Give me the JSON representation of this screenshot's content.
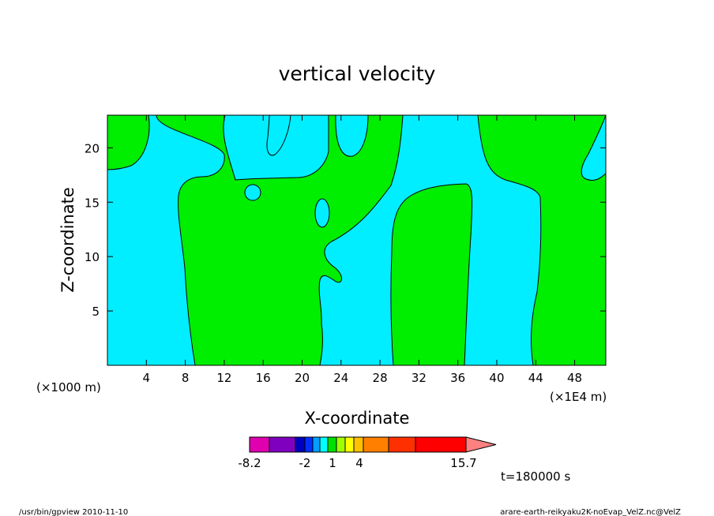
{
  "chart_data": {
    "type": "heatmap",
    "title": "vertical velocity",
    "xlabel": "X-coordinate",
    "ylabel": "Z-coordinate",
    "x_unit_left": "(×1000 m)",
    "x_unit_right": "(×1E4 m)",
    "xlim": [
      0,
      51.2
    ],
    "ylim": [
      0,
      23
    ],
    "x_ticks": [
      4,
      8,
      12,
      16,
      20,
      24,
      28,
      32,
      36,
      40,
      44,
      48
    ],
    "y_ticks": [
      5,
      10,
      15,
      20
    ],
    "colorbar": {
      "colors": [
        "#e000b0",
        "#8000c0",
        "#0000c0",
        "#0030ff",
        "#00a0ff",
        "#00ffff",
        "#00e000",
        "#a0ff00",
        "#ffff00",
        "#ffc000",
        "#ff8000",
        "#ff3000",
        "#ff0000",
        "#ff8080"
      ],
      "tick_labels": [
        "-8.2",
        "-2",
        "1",
        "4",
        "15.7"
      ],
      "extend": "max"
    },
    "fill_colors": {
      "negative": "#00eeff",
      "positive": "#00ee00"
    },
    "time_label": "t=180000 s",
    "footer_left": "/usr/bin/gpview  2010-11-10",
    "footer_right": "arare-earth-reikyaku2K-noEvap_VelZ.nc@VelZ"
  }
}
